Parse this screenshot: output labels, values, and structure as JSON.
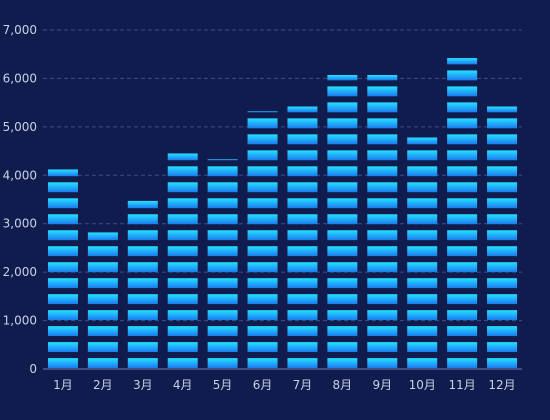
{
  "chart_data": {
    "type": "bar",
    "style": "pictorial-stacked-blocks",
    "title": "",
    "xlabel": "",
    "ylabel": "",
    "categories": [
      "1月",
      "2月",
      "3月",
      "4月",
      "5月",
      "6月",
      "7月",
      "8月",
      "9月",
      "10月",
      "11月",
      "12月"
    ],
    "values": [
      4100,
      2800,
      3450,
      4430,
      4310,
      5300,
      5400,
      6050,
      6050,
      4760,
      6400,
      5400
    ],
    "ylim": [
      0,
      7000
    ],
    "yticks": [
      0,
      1000,
      2000,
      3000,
      4000,
      5000,
      6000,
      7000
    ],
    "ytick_labels": [
      "0",
      "1,000",
      "2,000",
      "3,000",
      "4,000",
      "5,000",
      "6,000",
      "7,000"
    ],
    "block_value": 330,
    "grid": true,
    "legend": "none",
    "colors": {
      "background": "#0f1c4d",
      "bar_top": "#27e0ff",
      "bar_bottom": "#1a7bf0",
      "grid": "#3d4f86",
      "axis": "#6f7fae",
      "tick_text": "#c9d0e6"
    }
  }
}
